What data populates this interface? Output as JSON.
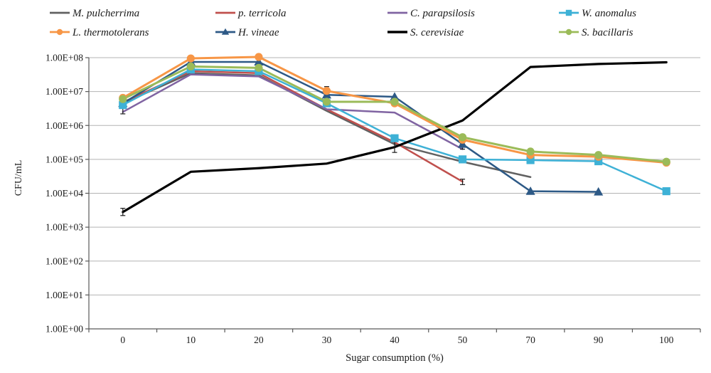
{
  "chart_data": {
    "type": "line",
    "title": "",
    "xlabel": "Sugar consumption (%)",
    "ylabel": "CFU/mL",
    "x_axis": {
      "categories": [
        "0",
        "10",
        "20",
        "30",
        "40",
        "50",
        "70",
        "90",
        "100"
      ]
    },
    "y_axis": {
      "scale": "log10",
      "exp_min": 0,
      "exp_max": 8,
      "tick_labels": [
        "1.00E+08",
        "1.00E+07",
        "1.00E+06",
        "1.00E+05",
        "1.00E+04",
        "1.00E+03",
        "1.00E+02",
        "1.00E+01",
        "1.00E+00"
      ],
      "grid": true
    },
    "legend_position": "top",
    "colors": {
      "grid": "#b3b3b3",
      "axis": "#595959",
      "text": "#1a1a1a",
      "error_bar": "#1a1a1a"
    },
    "series": [
      {
        "name": "M. pulcherrima",
        "color": "#616161",
        "marker": "none",
        "line_width": 2.5,
        "values": [
          4500000.0,
          35000000.0,
          30000000.0,
          2700000.0,
          280000.0,
          85000.0,
          30000.0,
          null,
          null
        ]
      },
      {
        "name": "p. terricola",
        "color": "#C0504D",
        "marker": "none",
        "line_width": 2.5,
        "values": [
          4800000.0,
          40000000.0,
          35000000.0,
          3000000.0,
          320000.0,
          22000.0,
          null,
          null,
          null
        ]
      },
      {
        "name": "C. parapsilosis",
        "color": "#8064A2",
        "marker": "none",
        "line_width": 2.5,
        "values": [
          2500000.0,
          32000000.0,
          28000000.0,
          3000000.0,
          2400000.0,
          200000.0,
          null,
          null,
          null
        ]
      },
      {
        "name": "W. anomalus",
        "color": "#3EB1D6",
        "marker": "square",
        "line_width": 2.5,
        "values": [
          4000000.0,
          45000000.0,
          40000000.0,
          4500000.0,
          420000.0,
          100000.0,
          95000.0,
          88000.0,
          11500.0
        ]
      },
      {
        "name": "L. thermotolerans",
        "color": "#F79646",
        "marker": "circle",
        "line_width": 3,
        "values": [
          6500000.0,
          95000000.0,
          105000000.0,
          10500000.0,
          4500000.0,
          380000.0,
          135000.0,
          120000.0,
          80000.0
        ]
      },
      {
        "name": "H. vineae",
        "color": "#2D5986",
        "marker": "triangle",
        "line_width": 2.5,
        "values": [
          4500000.0,
          75000000.0,
          75000000.0,
          8000000.0,
          7000000.0,
          280000.0,
          11500.0,
          11000.0,
          null
        ]
      },
      {
        "name": "S. cerevisiae",
        "color": "#000000",
        "marker": "none",
        "line_width": 3.2,
        "values": [
          2800.0,
          43000.0,
          55000.0,
          75000.0,
          230000.0,
          1400000.0,
          53000000.0,
          65000000.0,
          73000000.0
        ]
      },
      {
        "name": "S. bacillaris",
        "color": "#9BBB59",
        "marker": "circle",
        "line_width": 3,
        "values": [
          6000000.0,
          55000000.0,
          50000000.0,
          5000000.0,
          5000000.0,
          450000.0,
          170000.0,
          135000.0,
          85000.0
        ]
      }
    ],
    "draw_order": [
      0,
      1,
      2,
      5,
      3,
      6,
      4,
      7
    ],
    "error_bars": [
      {
        "x_index": 0,
        "top": 4000000.0,
        "bottom": 2200000.0
      },
      {
        "x_index": 0,
        "top": 3600.0,
        "bottom": 2200.0
      },
      {
        "x_index": 3,
        "top": 14000000.0,
        "bottom": 8000000.0
      },
      {
        "x_index": 4,
        "top": 420000.0,
        "bottom": 160000.0
      },
      {
        "x_index": 5,
        "top": 340000.0,
        "bottom": 200000.0
      },
      {
        "x_index": 5,
        "top": 26000.0,
        "bottom": 18000.0
      }
    ]
  }
}
